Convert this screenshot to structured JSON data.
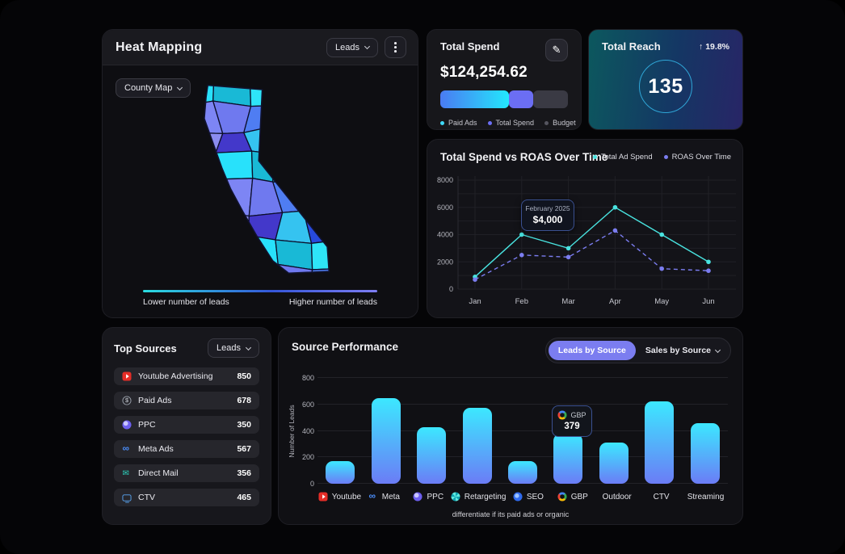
{
  "heat_mapping": {
    "title": "Heat Mapping",
    "metric_dropdown": "Leads",
    "view_dropdown": "County Map",
    "legend_low": "Lower number of leads",
    "legend_high": "Higher number of leads",
    "gradient_colors": [
      "#2adde0",
      "#3556d9",
      "#7d7df2"
    ],
    "county_palette": [
      "#28e1fb",
      "#4f7df2",
      "#1d2f9e",
      "#7d85f4",
      "#35c3f0",
      "#2743c9",
      "#8b8cf0",
      "#19b9d6",
      "#5a62c9",
      "#3b82f6",
      "#6f79ef",
      "#274add",
      "#56cef2",
      "#4338ca",
      "#2ee5f8",
      "#23418f"
    ]
  },
  "total_spend": {
    "title": "Total Spend",
    "amount": "$124,254.62",
    "segments": [
      {
        "label": "Paid Ads",
        "pct": 54,
        "colors": [
          "#4a7bf2",
          "#23e7fd"
        ],
        "dot": "#3fd9f8"
      },
      {
        "label": "Total Spend",
        "pct": 19,
        "colors": [
          "#6b6ef3"
        ],
        "dot": "#6b6ef3"
      },
      {
        "label": "Budget",
        "pct": 27,
        "colors": [
          "#3a3a44"
        ],
        "dot": "#55555f"
      }
    ]
  },
  "total_reach": {
    "title": "Total Reach",
    "value": "135",
    "delta_arrow": "↑",
    "delta": "19.8%"
  },
  "spend_roas": {
    "title": "Total Spend vs ROAS Over Time",
    "chart_data": {
      "type": "line",
      "x": [
        "Jan",
        "Feb",
        "Mar",
        "Apr",
        "May",
        "Jun"
      ],
      "series": [
        {
          "name": "Total Ad Spend",
          "color": "#49e3e0",
          "style": "solid",
          "values": [
            900,
            4000,
            3000,
            6000,
            4000,
            2000
          ]
        },
        {
          "name": "ROAS Over Time",
          "color": "#7b7df0",
          "style": "dashed",
          "values": [
            700,
            2500,
            2350,
            4300,
            1500,
            1350
          ]
        }
      ],
      "ylim": [
        0,
        8000
      ],
      "y_ticks": [
        0,
        2000,
        4000,
        6000,
        8000
      ],
      "grid": true,
      "legend_position": "top-right",
      "tooltip": {
        "title": "February 2025",
        "value": "$4,000",
        "x_index": 1
      }
    }
  },
  "top_sources": {
    "title": "Top Sources",
    "metric_dropdown": "Leads",
    "items": [
      {
        "label": "Youtube Advertising",
        "value": "850",
        "icon": "youtube"
      },
      {
        "label": "Paid Ads",
        "value": "678",
        "icon": "dollar"
      },
      {
        "label": "PPC",
        "value": "350",
        "icon": "ppc"
      },
      {
        "label": "Meta Ads",
        "value": "567",
        "icon": "meta"
      },
      {
        "label": "Direct Mail",
        "value": "356",
        "icon": "mail"
      },
      {
        "label": "CTV",
        "value": "465",
        "icon": "ctv"
      }
    ]
  },
  "source_performance": {
    "title": "Source Performance",
    "toggle": {
      "active": "Leads by Source",
      "inactive": "Sales by Source"
    },
    "footnote": "differentiate if its paid ads or organic",
    "chart_data": {
      "type": "bar",
      "ylabel": "Number of Leads",
      "ylim": [
        0,
        800
      ],
      "y_ticks": [
        0,
        200,
        400,
        600,
        800
      ],
      "categories": [
        {
          "label": "Youtube",
          "icon": "youtube"
        },
        {
          "label": "Meta",
          "icon": "meta"
        },
        {
          "label": "PPC",
          "icon": "ppc"
        },
        {
          "label": "Retargeting",
          "icon": "retargeting"
        },
        {
          "label": "SEO",
          "icon": "seo"
        },
        {
          "label": "GBP",
          "icon": "google"
        },
        {
          "label": "Outdoor",
          "icon": null
        },
        {
          "label": "CTV",
          "icon": null
        },
        {
          "label": "Streaming",
          "icon": null
        }
      ],
      "values": [
        170,
        650,
        430,
        575,
        170,
        379,
        310,
        625,
        460
      ],
      "bar_gradient": [
        "#3ce8ff",
        "#6b7cf6"
      ],
      "tooltip": {
        "label": "GBP",
        "value": "379",
        "icon": "google",
        "x_index": 5
      }
    }
  },
  "colors": {
    "accent_purple": "#7b7df0",
    "accent_cyan": "#35dff5",
    "grid": "#202026"
  }
}
